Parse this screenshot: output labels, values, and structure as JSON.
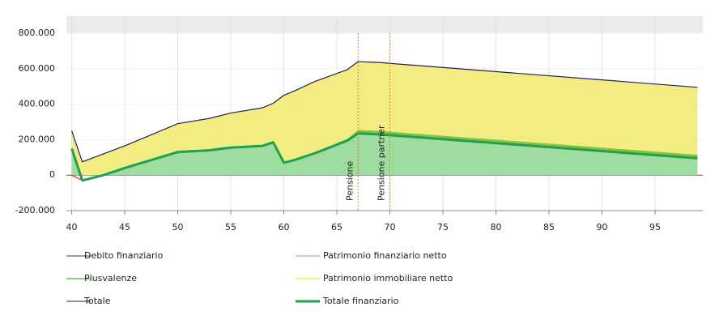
{
  "chart_data": {
    "type": "stacked-area",
    "x": [
      40,
      41,
      43,
      45,
      50,
      53,
      55,
      58,
      59,
      60,
      61,
      63,
      66,
      67,
      69,
      70,
      99
    ],
    "xlim": [
      39.5,
      99.5
    ],
    "xticks": [
      40,
      45,
      50,
      55,
      60,
      65,
      70,
      75,
      80,
      85,
      90,
      95
    ],
    "ylim": [
      -200000,
      800000
    ],
    "yticks": [
      {
        "value": -200000,
        "label": "-200.000"
      },
      {
        "value": 0,
        "label": "0"
      },
      {
        "value": 200000,
        "label": "200.000"
      },
      {
        "value": 400000,
        "label": "400.000"
      },
      {
        "value": 600000,
        "label": "600.000"
      },
      {
        "value": 800000,
        "label": "800.000"
      }
    ],
    "grid": true,
    "series": [
      {
        "name": "Debito finanziario",
        "type": "line",
        "color": "#e0261b",
        "legend_color": "#8b1a1a",
        "values": [
          0,
          -30000,
          0,
          null,
          null,
          null,
          null,
          null,
          null,
          null,
          null,
          null,
          null,
          null,
          null,
          null,
          null
        ]
      },
      {
        "name": "Patrimonio finanziario netto",
        "type": "area",
        "color": "#5cc26a",
        "fill": "#9edc9f",
        "values": [
          150000,
          0,
          0,
          40000,
          130000,
          140000,
          155000,
          165000,
          185000,
          70000,
          85000,
          125000,
          195000,
          235000,
          230000,
          225000,
          95000
        ]
      },
      {
        "name": "Plusvalenze",
        "type": "area",
        "color": "#2e8b3a",
        "fill": "#8fbf3f",
        "values": [
          0,
          0,
          0,
          0,
          0,
          0,
          0,
          0,
          0,
          0,
          0,
          5000,
          10000,
          20000,
          20000,
          20000,
          20000
        ]
      },
      {
        "name": "Patrimonio immobiliare netto",
        "type": "area",
        "color": "#e8d800",
        "fill": "#f2ec82",
        "values": [
          100000,
          75000,
          120000,
          125000,
          160000,
          180000,
          195000,
          215000,
          220000,
          380000,
          390000,
          400000,
          390000,
          385000,
          385000,
          385000,
          380000
        ]
      },
      {
        "name": "Totale",
        "type": "line",
        "color": "#1c1c78",
        "values": [
          250000,
          75000,
          120000,
          165000,
          290000,
          320000,
          350000,
          380000,
          405000,
          450000,
          475000,
          530000,
          595000,
          640000,
          635000,
          630000,
          495000
        ]
      },
      {
        "name": "Totale finanziario",
        "type": "line",
        "color": "#1fa24a",
        "width": 3,
        "values": [
          150000,
          -30000,
          0,
          40000,
          130000,
          140000,
          155000,
          165000,
          185000,
          70000,
          85000,
          125000,
          195000,
          235000,
          230000,
          225000,
          95000
        ]
      }
    ],
    "annotations": [
      {
        "x": 67,
        "label": "Pensione"
      },
      {
        "x": 70,
        "label": "Pensione partner"
      }
    ]
  }
}
